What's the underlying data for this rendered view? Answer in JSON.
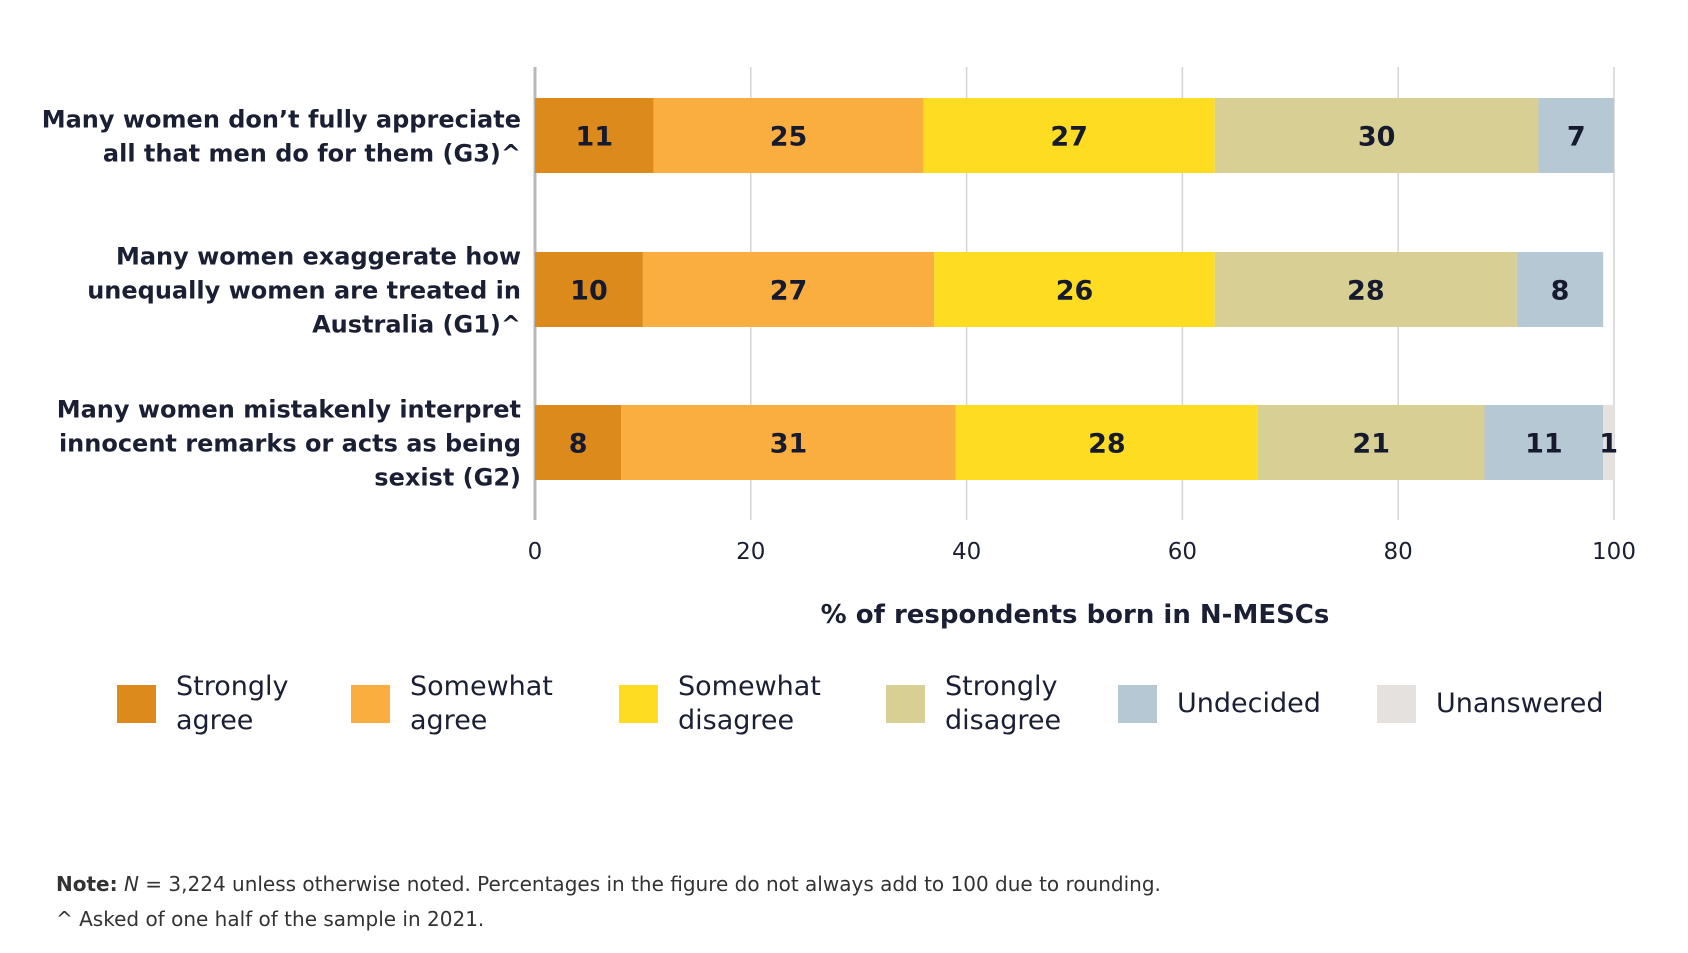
{
  "chart_data": {
    "type": "bar",
    "orientation": "horizontal",
    "stacked": true,
    "title": "",
    "xlabel": "% of respondents born in N-MESCs",
    "ylabel": "",
    "xlim": [
      0,
      100
    ],
    "xticks": [
      0,
      20,
      40,
      60,
      80,
      100
    ],
    "grid": true,
    "legend_position": "bottom",
    "categories": [
      [
        "Many women don’t fully appreciate",
        "all that men do for them (G3)^"
      ],
      [
        "Many women exaggerate how",
        "unequally women are treated in",
        "Australia (G1)^"
      ],
      [
        "Many women mistakenly interpret",
        "innocent remarks or acts as being",
        "sexist (G2)"
      ]
    ],
    "series": [
      {
        "name": "Strongly agree",
        "legend_lines": [
          "Strongly",
          "agree"
        ],
        "color": "#db8a1b",
        "values": [
          11,
          10,
          8
        ]
      },
      {
        "name": "Somewhat agree",
        "legend_lines": [
          "Somewhat",
          "agree"
        ],
        "color": "#fbae40",
        "values": [
          25,
          27,
          31
        ]
      },
      {
        "name": "Somewhat disagree",
        "legend_lines": [
          "Somewhat",
          "disagree"
        ],
        "color": "#fedc22",
        "values": [
          27,
          26,
          28
        ]
      },
      {
        "name": "Strongly disagree",
        "legend_lines": [
          "Strongly",
          "disagree"
        ],
        "color": "#d8cf94",
        "values": [
          30,
          28,
          21
        ]
      },
      {
        "name": "Undecided",
        "legend_lines": [
          "Undecided"
        ],
        "color": "#b7c8d5",
        "values": [
          7,
          8,
          11
        ]
      },
      {
        "name": "Unanswered",
        "legend_lines": [
          "Unanswered"
        ],
        "color": "#e4e1de",
        "values": [
          0,
          0,
          1
        ]
      }
    ]
  },
  "notes": {
    "note_label": "Note:",
    "note_n": "N",
    "note_text": " = 3,224 unless otherwise noted. Percentages in the figure do not always add to 100 due to rounding.",
    "footnote": "^ Asked of one half of the sample in 2021."
  }
}
